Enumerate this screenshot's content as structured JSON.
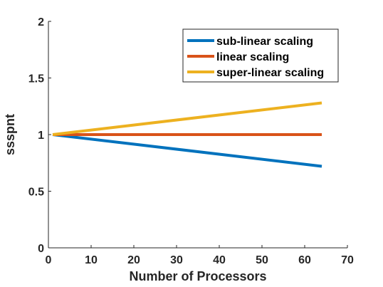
{
  "chart_data": {
    "type": "line",
    "xlabel": "Number of Processors",
    "ylabel": "ssspnt",
    "xlim": [
      0,
      70
    ],
    "ylim": [
      0,
      2
    ],
    "x_ticks": [
      "0",
      "10",
      "20",
      "30",
      "40",
      "50",
      "60",
      "70"
    ],
    "y_ticks": [
      "0",
      "0.5",
      "1",
      "1.5",
      "2"
    ],
    "legend_position": "top-right",
    "grid": false,
    "series": [
      {
        "name": "sub-linear scaling",
        "color": "#0072BD",
        "x": [
          1,
          64
        ],
        "y": [
          1.0,
          0.72
        ]
      },
      {
        "name": "linear scaling",
        "color": "#D95319",
        "x": [
          1,
          64
        ],
        "y": [
          1.0,
          1.0
        ]
      },
      {
        "name": "super-linear scaling",
        "color": "#EDB120",
        "x": [
          1,
          64
        ],
        "y": [
          1.0,
          1.28
        ]
      }
    ]
  }
}
